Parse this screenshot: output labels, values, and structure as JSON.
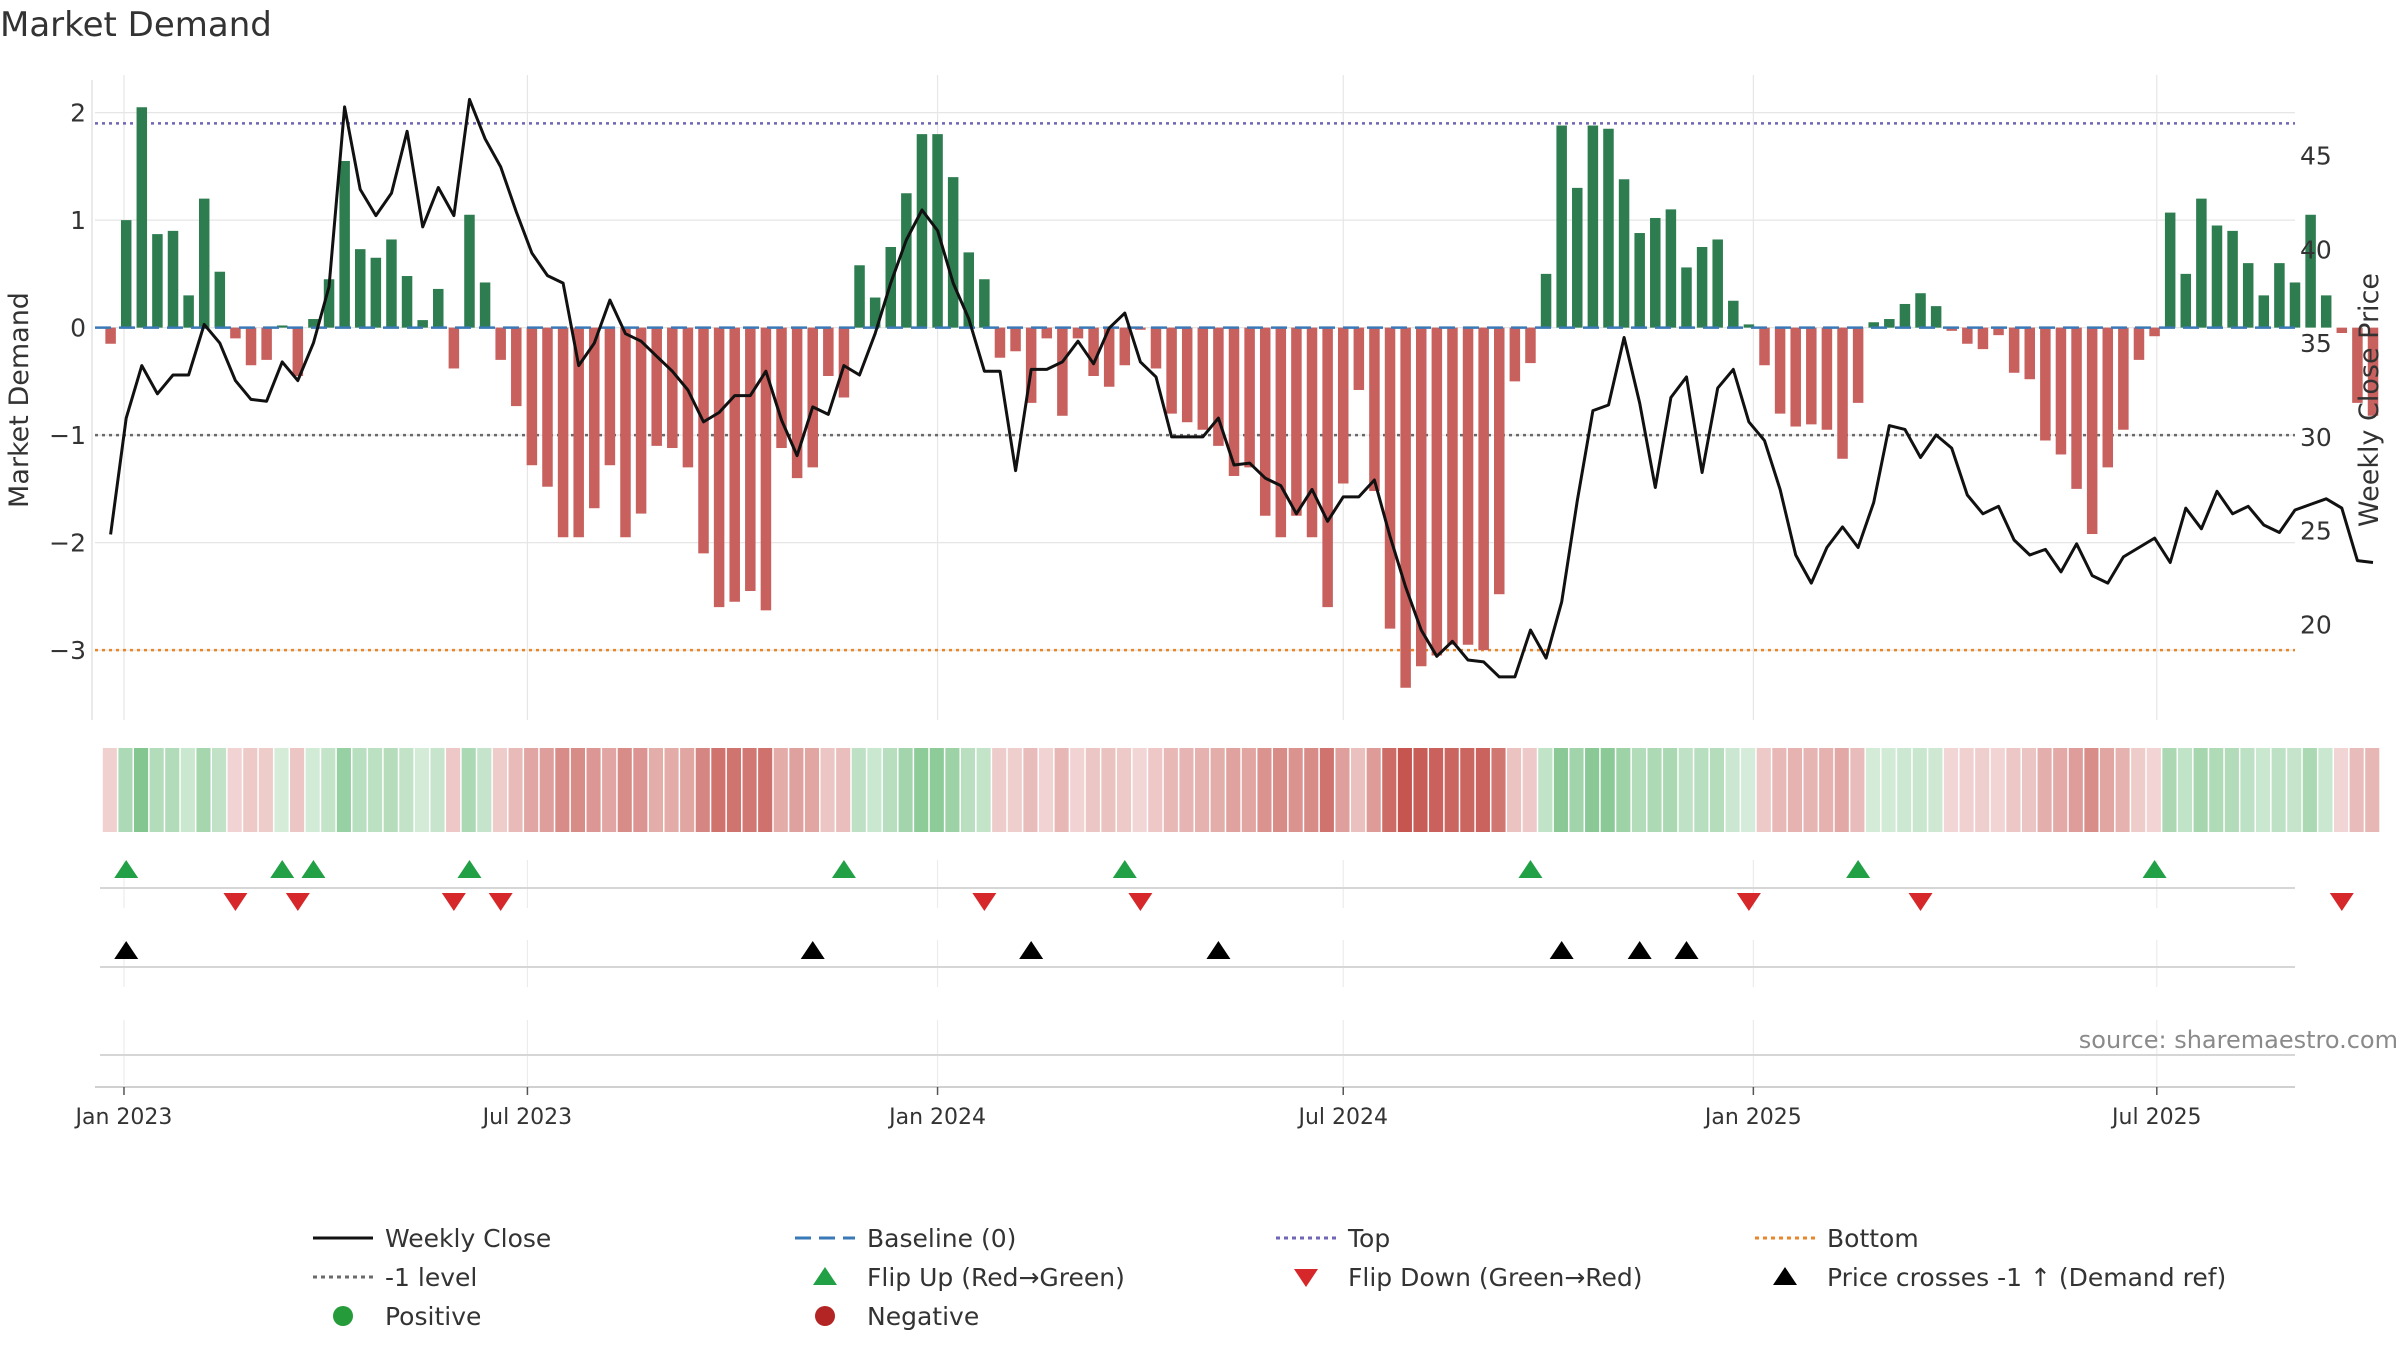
{
  "chart_data": {
    "type": "bar",
    "title": "Market Demand",
    "ylabel": "Market Demand",
    "y2label": "Weekly Close Price",
    "ylim": [
      -3.65,
      2.35
    ],
    "y2lim": [
      14.9,
      49.3
    ],
    "y_ticks": [
      2,
      1,
      0,
      -1,
      -2,
      -3
    ],
    "y_tick_labels": [
      "2",
      "1",
      "0",
      "−1",
      "−2",
      "−3"
    ],
    "y2_ticks": [
      45,
      40,
      35,
      30,
      25,
      20
    ],
    "y2_tick_labels": [
      "45",
      "40",
      "35",
      "30",
      "25",
      "20"
    ],
    "x_range": [
      "2022-12-19",
      "2025-09-01"
    ],
    "x_ticks": [
      "2023-01-01",
      "2023-07-01",
      "2024-01-01",
      "2024-07-01",
      "2025-01-01",
      "2025-07-01"
    ],
    "x_tick_labels": [
      "Jan 2023",
      "Jul 2023",
      "Jan 2024",
      "Jul 2024",
      "Jan 2025",
      "Jul 2025"
    ],
    "start_date": "2022-12-26",
    "week_step_days": 7,
    "levels": {
      "top": 1.9,
      "minus_one": -1,
      "bottom": -3,
      "baseline": 0
    },
    "series": [
      {
        "name": "Market Demand",
        "values": [
          -0.15,
          1,
          2.05,
          0.87,
          0.9,
          0.3,
          1.2,
          0.52,
          -0.1,
          -0.35,
          -0.3,
          0.02,
          -0.45,
          0.08,
          0.45,
          1.55,
          0.73,
          0.65,
          0.82,
          0.48,
          0.07,
          0.36,
          -0.38,
          1.05,
          0.42,
          -0.3,
          -0.73,
          -1.28,
          -1.48,
          -1.95,
          -1.95,
          -1.68,
          -1.28,
          -1.95,
          -1.73,
          -1.1,
          -1.12,
          -1.3,
          -2.1,
          -2.6,
          -2.55,
          -2.45,
          -2.63,
          -1.12,
          -1.4,
          -1.3,
          -0.45,
          -0.65,
          0.58,
          0.28,
          0.75,
          1.25,
          1.8,
          1.8,
          1.4,
          0.7,
          0.45,
          -0.28,
          -0.22,
          -0.7,
          -0.1,
          -0.82,
          -0.1,
          -0.45,
          -0.55,
          -0.35,
          -0.02,
          -0.38,
          -0.8,
          -0.88,
          -0.95,
          -1.1,
          -1.38,
          -1.3,
          -1.75,
          -1.95,
          -1.75,
          -1.95,
          -2.6,
          -1.45,
          -0.58,
          -1.52,
          -2.8,
          -3.35,
          -3.15,
          -3.05,
          -2.95,
          -2.95,
          -3,
          -2.48,
          -0.5,
          -0.33,
          0.5,
          1.88,
          1.3,
          1.88,
          1.85,
          1.38,
          0.88,
          1.02,
          1.1,
          0.56,
          0.75,
          0.82,
          0.25,
          0.03,
          -0.35,
          -0.8,
          -0.92,
          -0.9,
          -0.95,
          -1.22,
          -0.7,
          0.05,
          0.08,
          0.22,
          0.32,
          0.2,
          -0.03,
          -0.15,
          -0.2,
          -0.07,
          -0.42,
          -0.48,
          -1.05,
          -1.18,
          -1.5,
          -1.92,
          -1.3,
          -0.95,
          -0.3,
          -0.08,
          1.07,
          0.5,
          1.2,
          0.95,
          0.9,
          0.6,
          0.3,
          0.6,
          0.42,
          1.05,
          0.3,
          -0.05,
          -0.7,
          -0.82
        ]
      },
      {
        "name": "Weekly Close",
        "values": [
          24.8,
          31,
          33.8,
          32.3,
          33.3,
          33.3,
          36,
          35,
          33,
          32,
          31.9,
          34,
          33,
          35,
          38,
          47.6,
          43.2,
          41.8,
          43,
          46.3,
          41.2,
          43.3,
          41.8,
          48,
          45.9,
          44.4,
          42,
          39.8,
          38.6,
          38.2,
          33.8,
          35,
          37.3,
          35.5,
          35.1,
          34.3,
          33.5,
          32.5,
          30.8,
          31.3,
          32.2,
          32.2,
          33.5,
          30.9,
          29,
          31.6,
          31.2,
          33.8,
          33.3,
          35.5,
          38.2,
          40.5,
          42.1,
          41,
          38.2,
          36.3,
          33.5,
          33.5,
          28.2,
          33.6,
          33.6,
          34,
          35.1,
          33.9,
          35.8,
          36.6,
          34,
          33.2,
          30,
          30,
          30,
          31,
          28.5,
          28.6,
          27.8,
          27.4,
          25.9,
          27.2,
          25.5,
          26.8,
          26.8,
          27.7,
          24.7,
          22,
          19.7,
          18.3,
          19.1,
          18.1,
          18,
          17.2,
          17.2,
          19.7,
          18.2,
          21.2,
          26.6,
          31.4,
          31.7,
          35.3,
          31.8,
          27.3,
          32.1,
          33.2,
          28.1,
          32.6,
          33.6,
          30.8,
          29.8,
          27.2,
          23.7,
          22.2,
          24.1,
          25.2,
          24.1,
          26.5,
          30.6,
          30.4,
          28.9,
          30.1,
          29.4,
          26.9,
          25.9,
          26.3,
          24.5,
          23.7,
          24,
          22.8,
          24.3,
          22.6,
          22.2,
          23.6,
          24.1,
          24.6,
          23.3,
          26.2,
          25.1,
          27.1,
          25.9,
          26.3,
          25.3,
          24.9,
          26.1,
          26.4,
          26.7,
          26.2,
          23.4,
          23.3
        ]
      }
    ],
    "flip_up_weeks": [
      1,
      11,
      13,
      23,
      47,
      65,
      91,
      112,
      131
    ],
    "flip_down_weeks": [
      8,
      12,
      22,
      25,
      56,
      66,
      105,
      116,
      143
    ],
    "price_cross_weeks": [
      1,
      45,
      59,
      71,
      93,
      98,
      101
    ],
    "legend": {
      "placement": "bottom",
      "entries": [
        "Weekly Close",
        "Baseline (0)",
        "Top",
        "Bottom",
        "-1 level",
        "Flip Up (Red→Green)",
        "Flip Down (Green→Red)",
        "Price crosses -1 ↑ (Demand ref)",
        "Positive",
        "Negative"
      ]
    },
    "source_label": "source: sharemaestro.com"
  },
  "colors": {
    "positive_bar": "#2e7d50",
    "negative_bar": "#c8605e",
    "price_line": "#111111",
    "baseline": "#3a79b8",
    "top": "#6f66b5",
    "bottom": "#e8862a",
    "minus_one": "#6a6a6a",
    "flip_up": "#22a045",
    "flip_down": "#d6282a",
    "price_cross": "#000000",
    "positive_dot": "#259b3a",
    "negative_dot": "#b32424",
    "grid": "#e6e6e6",
    "text": "#333333",
    "source": "#8a8a8a"
  }
}
